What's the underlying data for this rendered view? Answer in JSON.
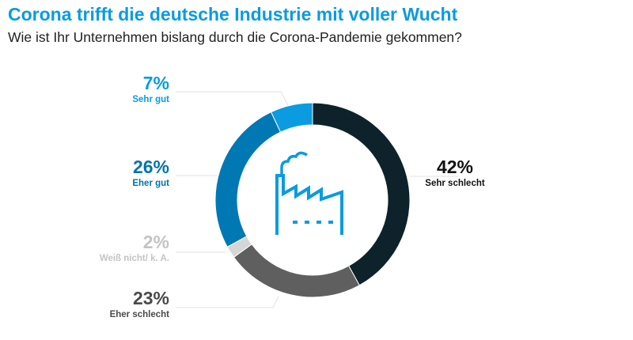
{
  "title": "Corona trifft die deutsche Industrie mit voller Wucht",
  "subtitle": "Wie ist Ihr Unternehmen bislang durch die Corona-Pandemie gekommen?",
  "chart_data": {
    "type": "pie",
    "donut": true,
    "start": "top",
    "direction": "clockwise",
    "center_icon": "factory-icon",
    "slices": [
      {
        "label": "Sehr schlecht",
        "value": 42,
        "display": "42%",
        "color": "#0d222b",
        "text_color": "#111111"
      },
      {
        "label": "Eher schlecht",
        "value": 23,
        "display": "23%",
        "color": "#5f5f5f",
        "text_color": "#4a4a4a"
      },
      {
        "label": "Weiß nicht/ k. A.",
        "value": 2,
        "display": "2%",
        "color": "#d6d6d6",
        "text_color": "#c4c4c4"
      },
      {
        "label": "Eher gut",
        "value": 26,
        "display": "26%",
        "color": "#0078b4",
        "text_color": "#0074ad"
      },
      {
        "label": "Sehr gut",
        "value": 7,
        "display": "7%",
        "color": "#0a9be0",
        "text_color": "#0a9be0"
      }
    ]
  }
}
